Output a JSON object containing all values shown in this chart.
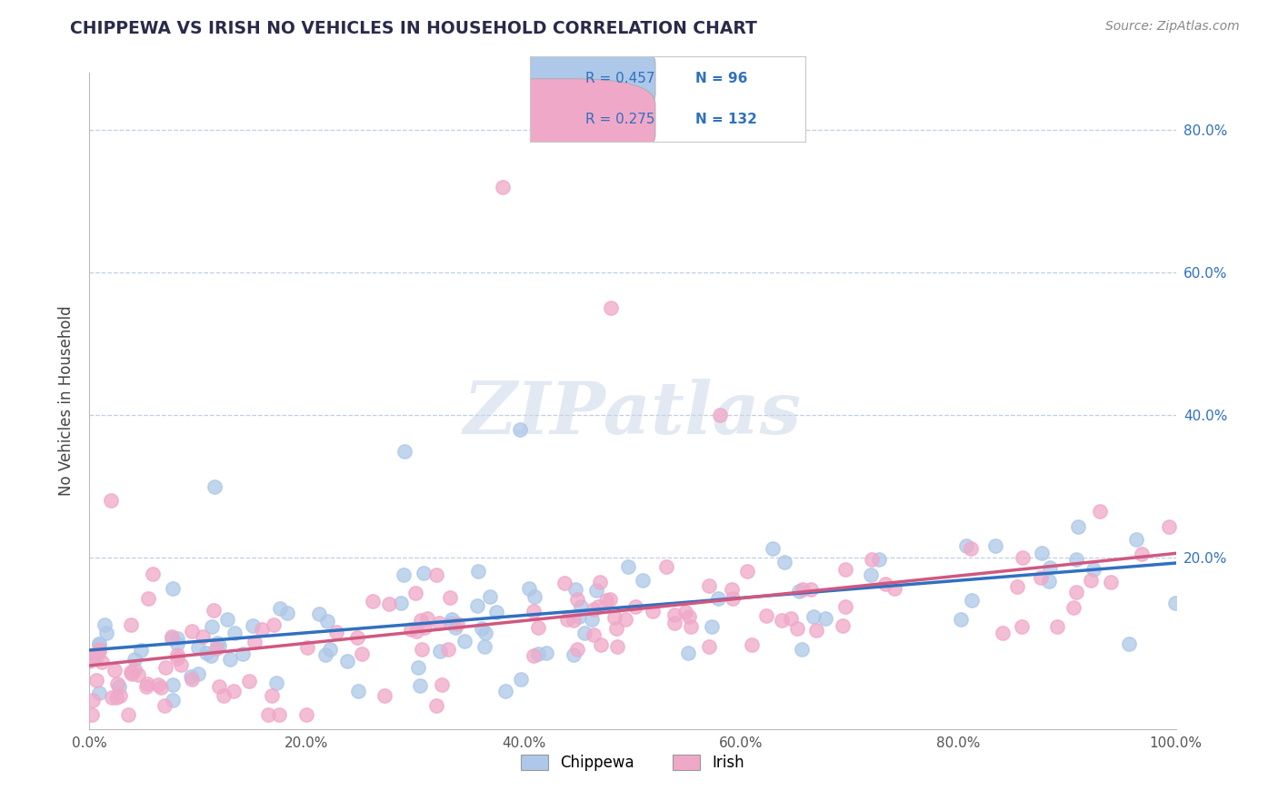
{
  "title": "CHIPPEWA VS IRISH NO VEHICLES IN HOUSEHOLD CORRELATION CHART",
  "source_text": "Source: ZipAtlas.com",
  "ylabel": "No Vehicles in Household",
  "xlim": [
    0.0,
    1.0
  ],
  "ylim": [
    -0.04,
    0.88
  ],
  "xtick_labels": [
    "0.0%",
    "20.0%",
    "40.0%",
    "60.0%",
    "80.0%",
    "100.0%"
  ],
  "xtick_vals": [
    0.0,
    0.2,
    0.4,
    0.6,
    0.8,
    1.0
  ],
  "ytick_labels": [
    "20.0%",
    "40.0%",
    "60.0%",
    "80.0%"
  ],
  "ytick_vals": [
    0.2,
    0.4,
    0.6,
    0.8
  ],
  "chippewa_color": "#adc8e8",
  "irish_color": "#f0a8c8",
  "chippewa_line_color": "#3070c0",
  "irish_line_color": "#d05880",
  "background_color": "#ffffff",
  "grid_color": "#c0cfe0",
  "R_chippewa": 0.457,
  "N_chippewa": 96,
  "R_irish": 0.275,
  "N_irish": 132,
  "watermark": "ZIPatlas",
  "legend_label_chippewa": "Chippewa",
  "legend_label_irish": "Irish"
}
